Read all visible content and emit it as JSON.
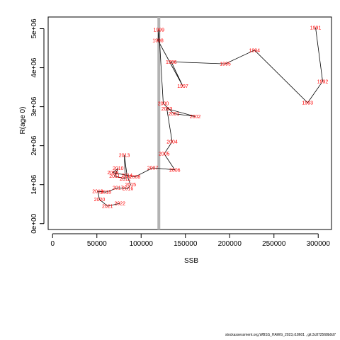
{
  "chart_data": {
    "type": "line",
    "title": "",
    "xlabel": "SSB",
    "ylabel": "R(age 0)",
    "xlim": [
      -5000,
      315000
    ],
    "ylim": [
      -150000,
      5300000
    ],
    "xticks": [
      0,
      50000,
      100000,
      150000,
      200000,
      250000,
      300000
    ],
    "xtick_labels": [
      "0",
      "50000",
      "100000",
      "150000",
      "200000",
      "250000",
      "300000"
    ],
    "yticks": [
      0,
      1000000,
      2000000,
      3000000,
      4000000,
      5000000
    ],
    "ytick_labels": [
      "0e+00",
      "1e+06",
      "2e+06",
      "3e+06",
      "4e+06",
      "5e+06"
    ],
    "reference_line_x": 120000,
    "grid": false,
    "points": [
      {
        "label": "1991",
        "x": 297000,
        "y": 5030000
      },
      {
        "label": "1992",
        "x": 305000,
        "y": 3650000
      },
      {
        "label": "1993",
        "x": 288000,
        "y": 3100000
      },
      {
        "label": "1994",
        "x": 228000,
        "y": 4450000
      },
      {
        "label": "1995",
        "x": 195000,
        "y": 4100000
      },
      {
        "label": "1996",
        "x": 134000,
        "y": 4150000
      },
      {
        "label": "1997",
        "x": 147000,
        "y": 3530000
      },
      {
        "label": "1998",
        "x": 119000,
        "y": 4700000
      },
      {
        "label": "1999",
        "x": 120000,
        "y": 4970000
      },
      {
        "label": "2000",
        "x": 125000,
        "y": 3080000
      },
      {
        "label": "2001",
        "x": 137000,
        "y": 2820000
      },
      {
        "label": "2002",
        "x": 161000,
        "y": 2750000
      },
      {
        "label": "2003",
        "x": 129000,
        "y": 2950000
      },
      {
        "label": "2004",
        "x": 135000,
        "y": 2100000
      },
      {
        "label": "2005",
        "x": 126000,
        "y": 1790000
      },
      {
        "label": "2006",
        "x": 138000,
        "y": 1380000
      },
      {
        "label": "2007",
        "x": 113000,
        "y": 1430000
      },
      {
        "label": "2008",
        "x": 93000,
        "y": 1200000
      },
      {
        "label": "2009",
        "x": 68000,
        "y": 1310000
      },
      {
        "label": "2010",
        "x": 74000,
        "y": 1420000
      },
      {
        "label": "2011",
        "x": 70000,
        "y": 1220000
      },
      {
        "label": "2012",
        "x": 82000,
        "y": 1150000
      },
      {
        "label": "2013",
        "x": 81000,
        "y": 1760000
      },
      {
        "label": "2014",
        "x": 84000,
        "y": 1240000
      },
      {
        "label": "2015",
        "x": 88000,
        "y": 1000000
      },
      {
        "label": "2016",
        "x": 85000,
        "y": 900000
      },
      {
        "label": "2017",
        "x": 74000,
        "y": 920000
      },
      {
        "label": "2018",
        "x": 60000,
        "y": 810000
      },
      {
        "label": "2019",
        "x": 51000,
        "y": 830000
      },
      {
        "label": "2020",
        "x": 53000,
        "y": 620000
      },
      {
        "label": "2021",
        "x": 62000,
        "y": 450000
      },
      {
        "label": "2022",
        "x": 76000,
        "y": 520000
      }
    ]
  },
  "footer_text": "stockassessment.org,WBSS_HAWG_2023,r18601 , git:3c872568b0d7"
}
